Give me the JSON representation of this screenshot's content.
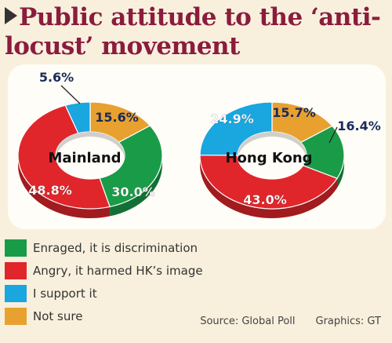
{
  "title": "Public attitude to the ‘anti-locust’ movement",
  "colors": {
    "enraged": "#1a9b48",
    "angry": "#e0262b",
    "support": "#1aa6df",
    "not_sure": "#e8a12f"
  },
  "chart_data": [
    {
      "type": "pie",
      "center_label": "Mainland",
      "slices": [
        {
          "category": "Enraged, it is discrimination",
          "value": 30.0,
          "label": "30.0%"
        },
        {
          "category": "Angry, it harmed HK’s image",
          "value": 48.8,
          "label": "48.8%"
        },
        {
          "category": "I support it",
          "value": 5.6,
          "label": "5.6%"
        },
        {
          "category": "Not sure",
          "value": 15.6,
          "label": "15.6%"
        }
      ]
    },
    {
      "type": "pie",
      "center_label": "Hong Kong",
      "slices": [
        {
          "category": "Enraged, it is discrimination",
          "value": 16.4,
          "label": "16.4%"
        },
        {
          "category": "Angry, it harmed HK’s image",
          "value": 43.0,
          "label": "43.0%"
        },
        {
          "category": "I support it",
          "value": 24.9,
          "label": "24.9%"
        },
        {
          "category": "Not sure",
          "value": 15.7,
          "label": "15.7%"
        }
      ]
    }
  ],
  "legend": [
    {
      "label": "Enraged, it is discrimination",
      "color": "#1a9b48"
    },
    {
      "label": "Angry, it harmed HK’s image",
      "color": "#e0262b"
    },
    {
      "label": "I support it",
      "color": "#1aa6df"
    },
    {
      "label": "Not sure",
      "color": "#e8a12f"
    }
  ],
  "footer": {
    "source": "Source: Global Poll",
    "graphics": "Graphics: GT"
  }
}
